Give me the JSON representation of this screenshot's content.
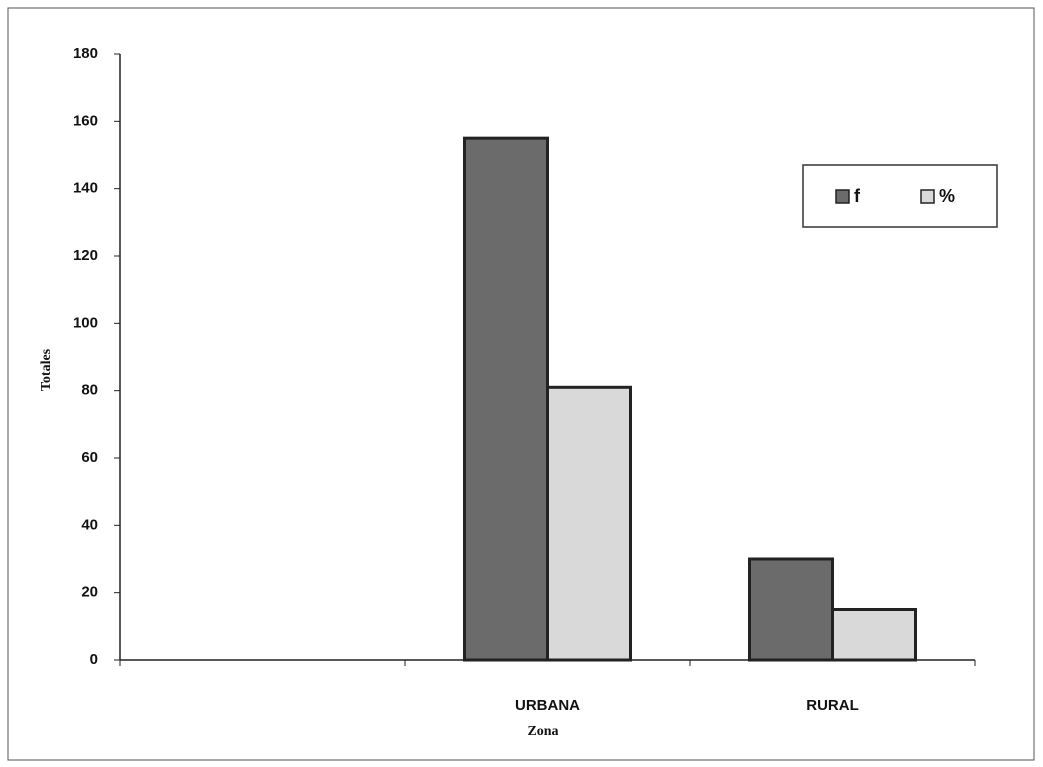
{
  "chart_data": {
    "type": "bar",
    "y_label": "Totales",
    "x_label": "Zona",
    "categories": [
      null,
      "URBANA",
      "RURAL"
    ],
    "series": [
      {
        "name": "f",
        "color": "#6b6b6b",
        "values": [
          null,
          155,
          30
        ]
      },
      {
        "name": "%",
        "color": "#d9d9d9",
        "values": [
          null,
          81,
          15
        ]
      }
    ],
    "ylim": [
      0,
      180
    ],
    "yticks": [
      0,
      20,
      40,
      60,
      80,
      100,
      120,
      140,
      160,
      180
    ],
    "legend": "upper right"
  }
}
